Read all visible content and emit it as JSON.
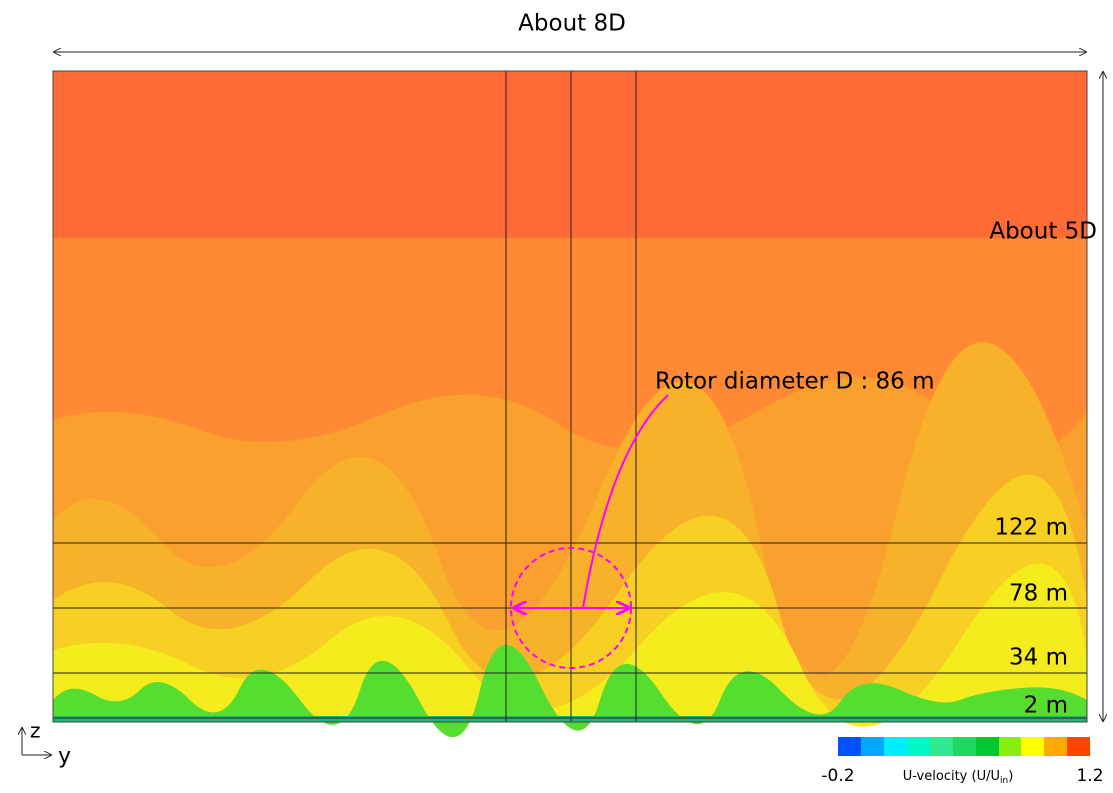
{
  "top_span": "About 8D",
  "side_span": "About 5D",
  "rotor_label": "Rotor diameter D : 86 m",
  "heights": [
    "122 m",
    "78 m",
    "34 m",
    "2 m"
  ],
  "axes": {
    "z": "z",
    "y": "y"
  },
  "colorbar": {
    "min": "-0.2",
    "max": "1.2",
    "label": "U-velocity (U/U",
    "label_sub": "in",
    "label_end": ")"
  }
}
